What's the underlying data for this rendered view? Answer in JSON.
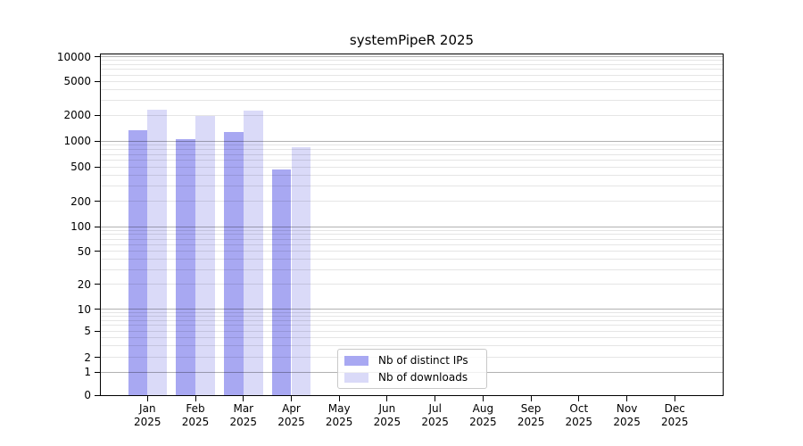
{
  "chart_data": {
    "type": "bar",
    "title": "systemPipeR 2025",
    "categories": [
      "Jan 2025",
      "Feb 2025",
      "Mar 2025",
      "Apr 2025",
      "May 2025",
      "Jun 2025",
      "Jul 2025",
      "Aug 2025",
      "Sep 2025",
      "Oct 2025",
      "Nov 2025",
      "Dec 2025"
    ],
    "series": [
      {
        "name": "Nb of distinct IPs",
        "color": "#a8a8f2",
        "values": [
          1330,
          1040,
          1260,
          470,
          null,
          null,
          null,
          null,
          null,
          null,
          null,
          null
        ]
      },
      {
        "name": "Nb of downloads",
        "color": "#dadaf8",
        "values": [
          2350,
          1960,
          2260,
          850,
          null,
          null,
          null,
          null,
          null,
          null,
          null,
          null
        ]
      }
    ],
    "yaxis": {
      "scale": "symlog",
      "ticks": [
        0,
        1,
        2,
        5,
        10,
        20,
        50,
        100,
        200,
        500,
        1000,
        2000,
        5000,
        10000
      ],
      "range_top": 10700
    },
    "xlabel": "",
    "ylabel": "",
    "grid": {
      "horizontal": true,
      "vertical": false,
      "major_on_decades": true,
      "minor_log_lines": true
    },
    "legend": {
      "position": "inside-bottom-center",
      "frame": true
    }
  }
}
